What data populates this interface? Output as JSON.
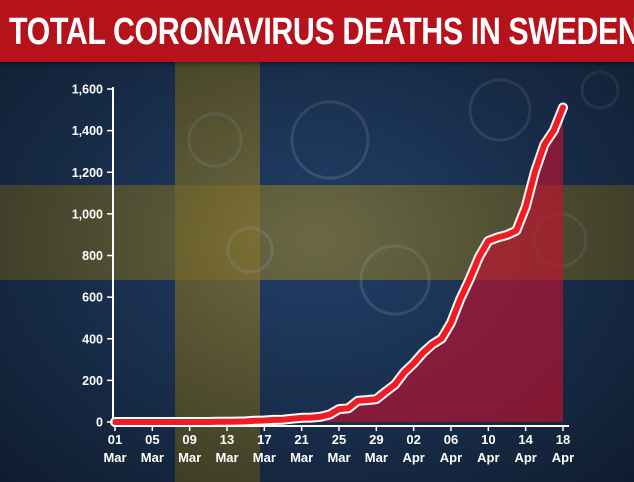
{
  "title": "TOTAL CORONAVIRUS DEATHS IN SWEDEN",
  "colors": {
    "title_bar": "#b5121b",
    "background": "#1d2a45",
    "flag_blue": "#24426e",
    "flag_yellow": "#8a7a34",
    "line": "#ef1c24",
    "line_outline": "#ffffff",
    "area_fill": "#c8102e",
    "axis_text": "#ffffff"
  },
  "chart_data": {
    "type": "area",
    "title": "TOTAL CORONAVIRUS DEATHS IN SWEDEN",
    "xlabel": "",
    "ylabel": "",
    "ylim": [
      0,
      1600
    ],
    "yticks": [
      "0",
      "200",
      "400",
      "600",
      "800",
      "1,000",
      "1,200",
      "1,400",
      "1,600"
    ],
    "xticks": [
      {
        "day": "01",
        "month": "Mar"
      },
      {
        "day": "05",
        "month": "Mar"
      },
      {
        "day": "09",
        "month": "Mar"
      },
      {
        "day": "13",
        "month": "Mar"
      },
      {
        "day": "17",
        "month": "Mar"
      },
      {
        "day": "21",
        "month": "Mar"
      },
      {
        "day": "25",
        "month": "Mar"
      },
      {
        "day": "29",
        "month": "Mar"
      },
      {
        "day": "02",
        "month": "Apr"
      },
      {
        "day": "06",
        "month": "Apr"
      },
      {
        "day": "10",
        "month": "Apr"
      },
      {
        "day": "14",
        "month": "Apr"
      },
      {
        "day": "18",
        "month": "Apr"
      }
    ],
    "grid": false,
    "legend": "none",
    "series": [
      {
        "x": [
          "2020-03-01",
          "2020-03-02",
          "2020-03-03",
          "2020-03-04",
          "2020-03-05",
          "2020-03-06",
          "2020-03-07",
          "2020-03-08",
          "2020-03-09",
          "2020-03-10",
          "2020-03-11",
          "2020-03-12",
          "2020-03-13",
          "2020-03-14",
          "2020-03-15",
          "2020-03-16",
          "2020-03-17",
          "2020-03-18",
          "2020-03-19",
          "2020-03-20",
          "2020-03-21",
          "2020-03-22",
          "2020-03-23",
          "2020-03-24",
          "2020-03-25",
          "2020-03-26",
          "2020-03-27",
          "2020-03-28",
          "2020-03-29",
          "2020-03-30",
          "2020-03-31",
          "2020-04-01",
          "2020-04-02",
          "2020-04-03",
          "2020-04-04",
          "2020-04-05",
          "2020-04-06",
          "2020-04-07",
          "2020-04-08",
          "2020-04-09",
          "2020-04-10",
          "2020-04-11",
          "2020-04-12",
          "2020-04-13",
          "2020-04-14",
          "2020-04-15",
          "2020-04-16",
          "2020-04-17",
          "2020-04-18"
        ],
        "values": [
          0,
          0,
          0,
          0,
          0,
          0,
          0,
          0,
          0,
          0,
          0,
          1,
          1,
          2,
          3,
          6,
          7,
          10,
          11,
          16,
          20,
          21,
          25,
          36,
          62,
          66,
          102,
          105,
          110,
          146,
          180,
          239,
          282,
          333,
          373,
          401,
          477,
          591,
          687,
          793,
          870,
          887,
          899,
          919,
          1033,
          1203,
          1333,
          1400,
          1511
        ]
      }
    ]
  }
}
